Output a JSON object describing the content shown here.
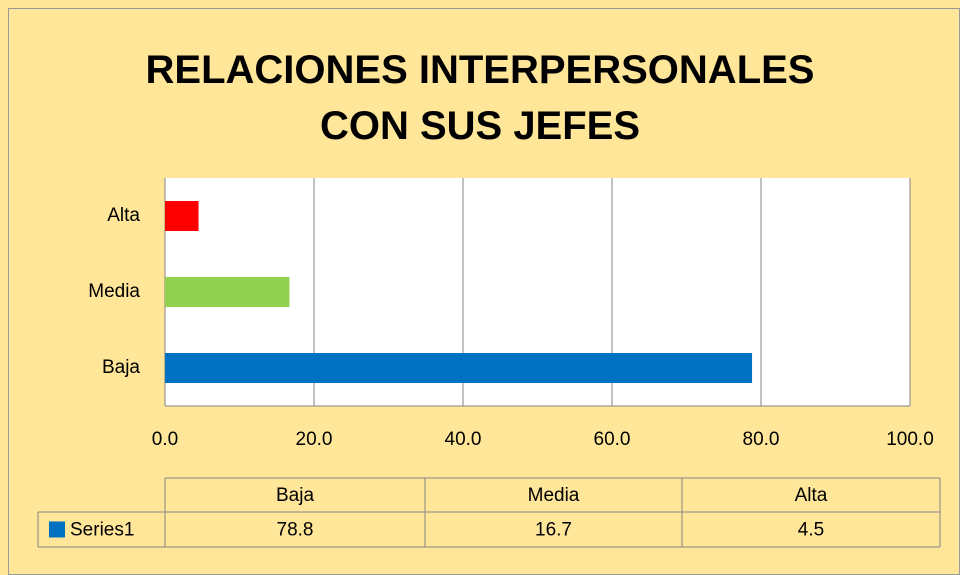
{
  "chart_data": {
    "type": "bar",
    "orientation": "horizontal",
    "title": "RELACIONES INTERPERSONALES CON SUS JEFES",
    "categories": [
      "Baja",
      "Media",
      "Alta"
    ],
    "series": [
      {
        "name": "Series1",
        "color": "#0070c0",
        "point_colors": [
          "#0070c0",
          "#92d050",
          "#ff0000"
        ],
        "values": [
          78.8,
          16.7,
          4.5
        ]
      }
    ],
    "xlim": [
      0,
      100
    ],
    "xticks": [
      {
        "value": 0,
        "label": "0.0"
      },
      {
        "value": 20,
        "label": "20.0"
      },
      {
        "value": 40,
        "label": "40.0"
      },
      {
        "value": 60,
        "label": "60.0"
      },
      {
        "value": 80,
        "label": "80.0"
      },
      {
        "value": 100,
        "label": "100.0"
      }
    ],
    "grid": true,
    "data_table": true
  }
}
